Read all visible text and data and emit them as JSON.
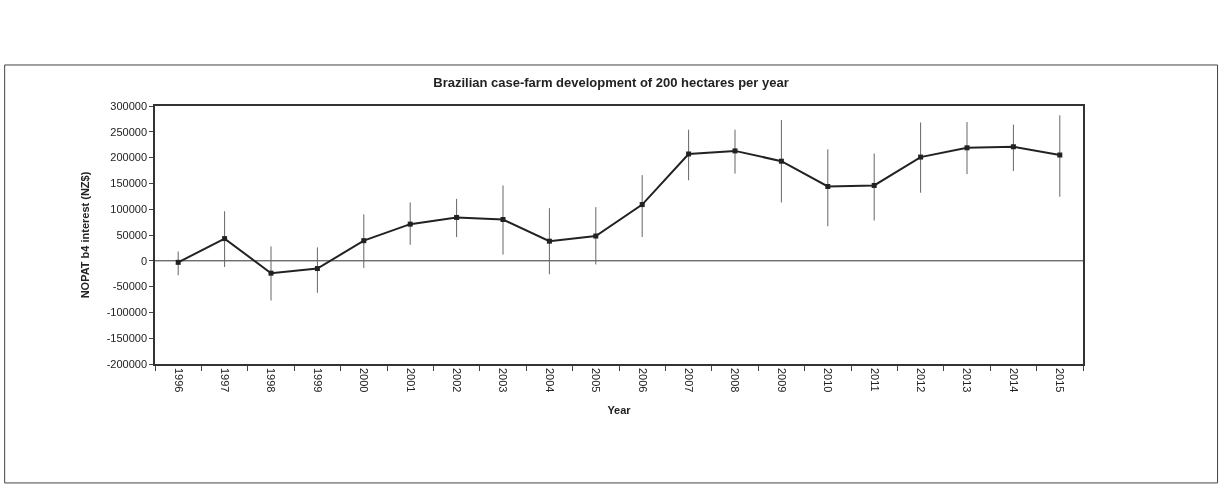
{
  "chart_data": {
    "type": "line",
    "title": "Brazilian case-farm development of 200 hectares per year",
    "xlabel": "Year",
    "ylabel": "NOPAT b4 interest (NZ$)",
    "categories": [
      "1996",
      "1997",
      "1998",
      "1999",
      "2000",
      "2001",
      "2002",
      "2003",
      "2004",
      "2005",
      "2006",
      "2007",
      "2008",
      "2009",
      "2010",
      "2011",
      "2012",
      "2013",
      "2014",
      "2015"
    ],
    "series": [
      {
        "color": "#222222",
        "values": [
          -3000,
          43000,
          -24000,
          -15000,
          39000,
          71000,
          84000,
          80000,
          38000,
          48000,
          109000,
          207000,
          213000,
          193000,
          144000,
          146000,
          201000,
          219000,
          221000,
          205000
        ],
        "errors": [
          [
            -28000,
            18000
          ],
          [
            -12000,
            96000
          ],
          [
            -77000,
            28000
          ],
          [
            -62000,
            26000
          ],
          [
            -14000,
            90000
          ],
          [
            31000,
            113000
          ],
          [
            46000,
            120000
          ],
          [
            12000,
            146000
          ],
          [
            -26000,
            102000
          ],
          [
            -7000,
            104000
          ],
          [
            46000,
            166000
          ],
          [
            156000,
            254000
          ],
          [
            169000,
            254000
          ],
          [
            113000,
            273000
          ],
          [
            67000,
            216000
          ],
          [
            78000,
            208000
          ],
          [
            132000,
            268000
          ],
          [
            168000,
            269000
          ],
          [
            174000,
            264000
          ],
          [
            124000,
            282000
          ]
        ]
      }
    ],
    "ylim": [
      -200000,
      300000
    ],
    "yticks": [
      -200000,
      -150000,
      -100000,
      -50000,
      0,
      50000,
      100000,
      150000,
      200000,
      250000,
      300000
    ],
    "ref_lines": [
      {
        "axis": "y",
        "value": 0,
        "color": "#333333"
      }
    ],
    "marker": "square",
    "line_style": "solid"
  }
}
